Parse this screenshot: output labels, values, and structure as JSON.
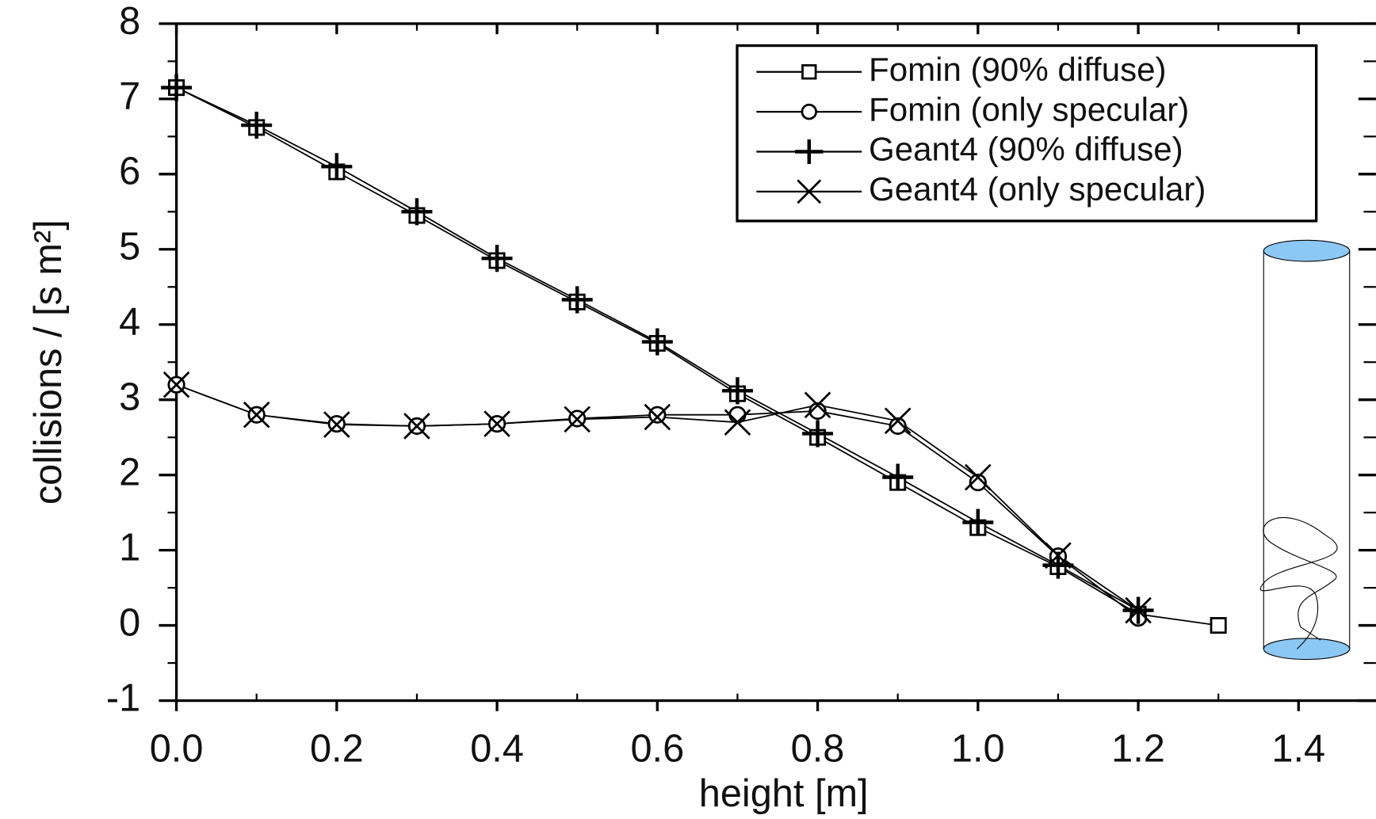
{
  "chart_data": {
    "type": "line",
    "x_label": "height [m]",
    "y_label": "collisions / [s m²]",
    "x": [
      0,
      0.1,
      0.2,
      0.3,
      0.4,
      0.5,
      0.6,
      0.7,
      0.8,
      0.9,
      1.0,
      1.1,
      1.2,
      1.3
    ],
    "series": [
      {
        "name": "Fomin (90% diffuse)",
        "color": "#000000",
        "marker": "square",
        "values": [
          7.15,
          6.62,
          6.03,
          5.45,
          4.85,
          4.3,
          3.75,
          3.08,
          2.5,
          1.9,
          1.3,
          0.78,
          0.15,
          0.0
        ]
      },
      {
        "name": "Fomin (only specular)",
        "color": "#000000",
        "marker": "circle",
        "values": [
          3.2,
          2.8,
          2.68,
          2.65,
          2.68,
          2.75,
          2.8,
          2.8,
          2.85,
          2.65,
          1.9,
          0.92,
          0.1,
          null
        ]
      },
      {
        "name": "Geant4 (90% diffuse)",
        "color": "#000000",
        "marker": "plus",
        "values": [
          7.15,
          6.65,
          6.1,
          5.5,
          4.88,
          4.33,
          3.77,
          3.12,
          2.55,
          1.97,
          1.37,
          0.8,
          0.2,
          null
        ]
      },
      {
        "name": "Geant4 (only specular)",
        "color": "#000000",
        "marker": "cross",
        "values": [
          3.2,
          2.8,
          2.67,
          2.65,
          2.68,
          2.74,
          2.77,
          2.7,
          2.93,
          2.72,
          1.97,
          0.93,
          0.2,
          null
        ]
      }
    ],
    "xlim": [
      0,
      1.49
    ],
    "xticks": [
      {
        "value": 0,
        "label": "0.0"
      },
      0.2,
      0.4,
      0.6,
      0.8,
      {
        "value": 1.0,
        "label": "1.0"
      },
      1.2,
      1.4
    ],
    "ylim": [
      -1,
      8
    ],
    "yticks": [
      -1,
      0,
      1,
      2,
      3,
      4,
      5,
      6,
      7,
      8
    ],
    "legend": "top-right"
  }
}
